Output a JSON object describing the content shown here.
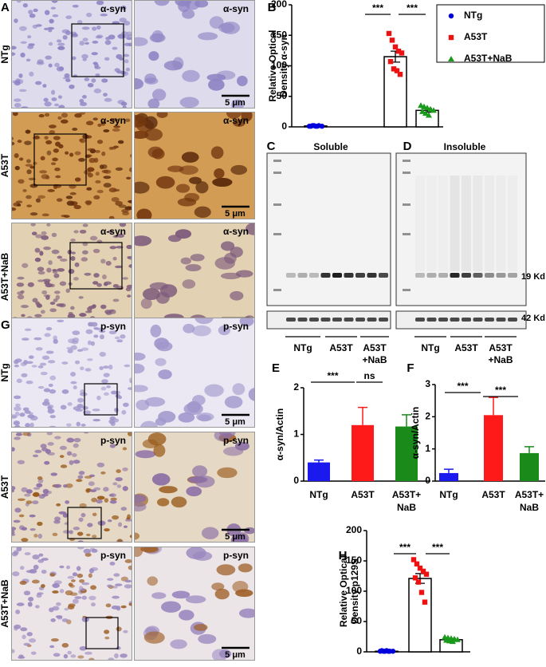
{
  "micrographs": [
    {
      "letter": "A",
      "rows": [
        {
          "label": "NTg",
          "stains": [
            "α-syn",
            "α-syn"
          ],
          "scale": "5 μm"
        },
        {
          "label": "A53T",
          "stains": [
            "α-syn",
            "α-syn"
          ],
          "scale": "5 μm"
        },
        {
          "label": "A53T+NaB",
          "stains": [
            "α-syn",
            "α-syn"
          ],
          "scale": "5 μm"
        }
      ]
    },
    {
      "letter": "G",
      "rows": [
        {
          "label": "NTg",
          "stains": [
            "p-syn",
            "p-syn"
          ],
          "scale": "5 μm"
        },
        {
          "label": "A53T",
          "stains": [
            "p-syn",
            "p-syn"
          ],
          "scale": "5 μm"
        },
        {
          "label": "A53T+NaB",
          "stains": [
            "p-syn",
            "p-syn"
          ],
          "scale": "5 μm"
        }
      ]
    }
  ],
  "blots": [
    {
      "letter": "C",
      "title": "Soluble",
      "lanes": [
        "NTg",
        "A53T",
        [
          "A53T",
          "+NaB"
        ]
      ]
    },
    {
      "letter": "D",
      "title": "Insoluble",
      "lanes": [
        "NTg",
        "A53T",
        [
          "A53T",
          "+NaB"
        ]
      ]
    }
  ],
  "markers": [
    "19 Kd",
    "42 Kd"
  ],
  "chart_data": [
    {
      "type": "dotbar",
      "letter": "B",
      "y_label": [
        "Relative Optical",
        "Density α-syn"
      ],
      "ylim": [
        0,
        200
      ],
      "yticks": [
        0,
        50,
        100,
        150,
        200
      ],
      "legend": true,
      "bar_values": [
        1.5,
        115,
        27
      ],
      "errors": [
        0.5,
        9,
        3
      ],
      "series": [
        {
          "name": "NTg",
          "color": "#0000dd",
          "marker": "circle",
          "values": [
            1,
            2,
            1,
            2,
            1,
            1,
            2,
            1
          ]
        },
        {
          "name": "A53T",
          "color": "#ee1111",
          "marker": "square",
          "values": [
            153,
            142,
            131,
            124,
            121,
            107,
            95,
            92,
            86
          ]
        },
        {
          "name": "A53T+NaB",
          "color": "#1a9a1a",
          "marker": "triangle",
          "values": [
            35,
            33,
            31,
            29,
            27,
            25,
            22,
            19
          ]
        }
      ],
      "annotations": [
        "***",
        "***"
      ]
    },
    {
      "type": "bar",
      "letter": "E",
      "y_label": "α-syn/Actin",
      "ylim": [
        0,
        2
      ],
      "yticks": [
        0,
        1,
        2
      ],
      "categories": [
        "NTg",
        "A53T",
        [
          "A53T+",
          "NaB"
        ]
      ],
      "values": [
        0.4,
        1.2,
        1.17
      ],
      "errors": [
        0.05,
        0.38,
        0.25
      ],
      "colors": [
        "#1a1aee",
        "#ff1a1a",
        "#1a8a1a"
      ],
      "annotations": [
        "***",
        "ns"
      ]
    },
    {
      "type": "bar",
      "letter": "F",
      "y_label": "α-syn/Actin",
      "ylim": [
        0,
        3
      ],
      "yticks": [
        0,
        1,
        2,
        3
      ],
      "categories": [
        "NTg",
        "A53T",
        [
          "A53T+",
          "NaB"
        ]
      ],
      "values": [
        0.25,
        2.05,
        0.87
      ],
      "errors": [
        0.12,
        0.55,
        0.2
      ],
      "colors": [
        "#1a1aee",
        "#ff1a1a",
        "#1a8a1a"
      ],
      "annotations": [
        "***",
        "***"
      ]
    },
    {
      "type": "dotbar",
      "letter": "H",
      "y_label": [
        "Relative Optical",
        "Density p129S"
      ],
      "ylim": [
        0,
        200
      ],
      "yticks": [
        0,
        50,
        100,
        150,
        200
      ],
      "legend": false,
      "bar_values": [
        1,
        121,
        20
      ],
      "errors": [
        0.5,
        8,
        2
      ],
      "series": [
        {
          "color": "#0000dd",
          "marker": "circle",
          "values": [
            1,
            1,
            2,
            1,
            1,
            2,
            1,
            1
          ]
        },
        {
          "color": "#ee1111",
          "marker": "square",
          "values": [
            152,
            145,
            138,
            133,
            128,
            122,
            115,
            98,
            82
          ]
        },
        {
          "color": "#1a9a1a",
          "marker": "triangle",
          "values": [
            24,
            23,
            22,
            21,
            20,
            19,
            18,
            17
          ]
        }
      ],
      "annotations": [
        "***",
        "***"
      ]
    }
  ]
}
